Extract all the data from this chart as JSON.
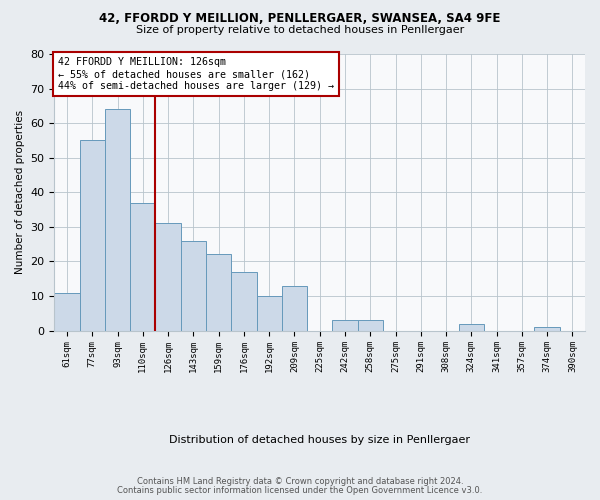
{
  "title1": "42, FFORDD Y MEILLION, PENLLERGAER, SWANSEA, SA4 9FE",
  "title2": "Size of property relative to detached houses in Penllergaer",
  "xlabel": "Distribution of detached houses by size in Penllergaer",
  "ylabel": "Number of detached properties",
  "bin_labels": [
    "61sqm",
    "77sqm",
    "93sqm",
    "110sqm",
    "126sqm",
    "143sqm",
    "159sqm",
    "176sqm",
    "192sqm",
    "209sqm",
    "225sqm",
    "242sqm",
    "258sqm",
    "275sqm",
    "291sqm",
    "308sqm",
    "324sqm",
    "341sqm",
    "357sqm",
    "374sqm",
    "390sqm"
  ],
  "bar_heights": [
    11,
    55,
    64,
    37,
    31,
    26,
    22,
    17,
    10,
    13,
    0,
    3,
    3,
    0,
    0,
    0,
    2,
    0,
    0,
    1,
    0
  ],
  "bar_color": "#ccd9e8",
  "bar_edgecolor": "#6699bb",
  "vline_x_index": 4,
  "vline_color": "#aa0000",
  "annotation_title": "42 FFORDD Y MEILLION: 126sqm",
  "annotation_line1": "← 55% of detached houses are smaller (162)",
  "annotation_line2": "44% of semi-detached houses are larger (129) →",
  "annotation_box_color": "#ffffff",
  "annotation_box_edgecolor": "#aa0000",
  "ylim": [
    0,
    80
  ],
  "yticks": [
    0,
    10,
    20,
    30,
    40,
    50,
    60,
    70,
    80
  ],
  "footnote1": "Contains HM Land Registry data © Crown copyright and database right 2024.",
  "footnote2": "Contains public sector information licensed under the Open Government Licence v3.0.",
  "background_color": "#e8ecf0",
  "plot_background_color": "#f8f9fb"
}
